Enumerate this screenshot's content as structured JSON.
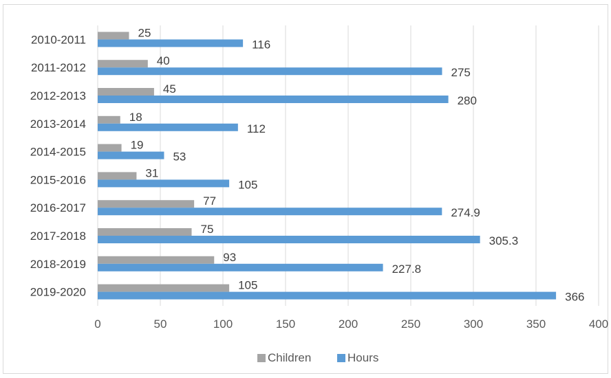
{
  "chart_data": {
    "type": "bar",
    "orientation": "horizontal",
    "title": "",
    "xlabel": "",
    "ylabel": "",
    "categories": [
      "2010-2011",
      "2011-2012",
      "2012-2013",
      "2013-2014",
      "2014-2015",
      "2015-2016",
      "2016-2017",
      "2017-2018",
      "2018-2019",
      "2019-2020"
    ],
    "series": [
      {
        "name": "Children",
        "color": "#a5a5a5",
        "values": [
          25,
          40,
          45,
          18,
          19,
          31,
          77,
          75,
          93,
          105
        ]
      },
      {
        "name": "Hours",
        "color": "#5b9bd5",
        "values": [
          116,
          275,
          280,
          112,
          53,
          105,
          274.9,
          305.3,
          227.8,
          366
        ]
      }
    ],
    "xlim": [
      0,
      400
    ],
    "xticks": [
      0,
      50,
      100,
      150,
      200,
      250,
      300,
      350,
      400
    ],
    "grid": true,
    "legend_position": "bottom"
  }
}
